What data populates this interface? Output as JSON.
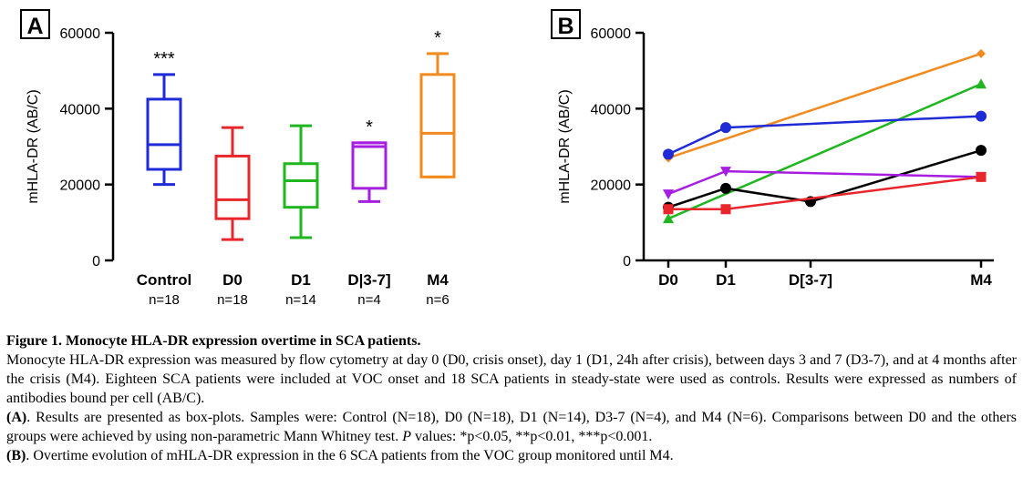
{
  "panel_a": {
    "label": "A",
    "chart_data": {
      "type": "box",
      "ylabel": "mHLA-DR (AB/C)",
      "ylim": [
        0,
        60000
      ],
      "yticks": [
        "0",
        "20000",
        "40000",
        "60000"
      ],
      "categories": [
        "Control",
        "D0",
        "D1",
        "D|3-7]",
        "M4"
      ],
      "n_labels": [
        "n=18",
        "n=18",
        "n=14",
        "n=4",
        "n=6"
      ],
      "significance": [
        "***",
        "",
        "",
        "*",
        "*"
      ],
      "colors": [
        "#1f2bd6",
        "#e8262b",
        "#1fb61f",
        "#a61ee0",
        "#f28a1e"
      ],
      "boxes": [
        {
          "min": 20000,
          "q1": 24000,
          "median": 30500,
          "q3": 42500,
          "max": 49000
        },
        {
          "min": 5500,
          "q1": 11000,
          "median": 16000,
          "q3": 27500,
          "max": 35000
        },
        {
          "min": 6000,
          "q1": 14000,
          "median": 21000,
          "q3": 25500,
          "max": 35500
        },
        {
          "min": 15500,
          "q1": 19000,
          "median": 30000,
          "q3": 31000,
          "max": 31000
        },
        {
          "min": 22000,
          "q1": 22000,
          "median": 33500,
          "q3": 49000,
          "max": 54500
        }
      ]
    }
  },
  "panel_b": {
    "label": "B",
    "chart_data": {
      "type": "line",
      "ylabel": "mHLA-DR (AB/C)",
      "ylim": [
        0,
        60000
      ],
      "yticks": [
        "0",
        "20000",
        "40000",
        "60000"
      ],
      "x_labels": [
        "D0",
        "D1",
        "D[3-7]",
        "M4"
      ],
      "series": [
        {
          "name": "orange",
          "color": "#f28a1e",
          "marker": "diamond",
          "points": [
            {
              "x": "D0",
              "y": 27000
            },
            {
              "x": "M4",
              "y": 54500
            }
          ]
        },
        {
          "name": "green",
          "color": "#1fb61f",
          "marker": "triangle-up",
          "points": [
            {
              "x": "D0",
              "y": 11000
            },
            {
              "x": "M4",
              "y": 46500
            }
          ]
        },
        {
          "name": "blue",
          "color": "#1f2bd6",
          "marker": "circle",
          "points": [
            {
              "x": "D0",
              "y": 28000
            },
            {
              "x": "D1",
              "y": 35000
            },
            {
              "x": "M4",
              "y": 38000
            }
          ]
        },
        {
          "name": "black",
          "color": "#000000",
          "marker": "circle",
          "points": [
            {
              "x": "D0",
              "y": 14000
            },
            {
              "x": "D1",
              "y": 19000
            },
            {
              "x": "D[3-7]",
              "y": 15500
            },
            {
              "x": "M4",
              "y": 29000
            }
          ]
        },
        {
          "name": "purple",
          "color": "#a61ee0",
          "marker": "triangle-down",
          "points": [
            {
              "x": "D0",
              "y": 17500
            },
            {
              "x": "D1",
              "y": 23500
            },
            {
              "x": "M4",
              "y": 22000
            }
          ]
        },
        {
          "name": "red",
          "color": "#e8262b",
          "marker": "square",
          "points": [
            {
              "x": "D0",
              "y": 13500
            },
            {
              "x": "D1",
              "y": 13500
            },
            {
              "x": "M4",
              "y": 22000
            }
          ]
        }
      ]
    }
  },
  "caption": {
    "title": "Figure 1. Monocyte HLA-DR expression overtime in SCA patients.",
    "body": "Monocyte HLA-DR expression was measured by flow cytometry at day 0 (D0, crisis onset), day 1 (D1, 24h after crisis), between days 3 and 7 (D3-7), and at 4 months after the crisis (M4). Eighteen SCA patients were included at VOC onset and 18 SCA patients in steady-state were used as controls. Results were expressed as numbers of antibodies bound per cell (AB/C).",
    "a_label": "(A)",
    "a_text_1": ". Results are presented as box-plots. Samples were: Control (N=18), D0 (N=18), D1 (N=14), D3-7 (N=4), and M4 (N=6). Comparisons between D0 and the others groups were achieved by using non-parametric Mann Whitney test. ",
    "a_p": "P",
    "a_text_2": " values: *p<0.05, **p<0.01, ***p<0.001.",
    "b_label": "(B)",
    "b_text": ". Overtime evolution of mHLA-DR expression in the 6 SCA patients from the VOC group monitored until M4."
  }
}
